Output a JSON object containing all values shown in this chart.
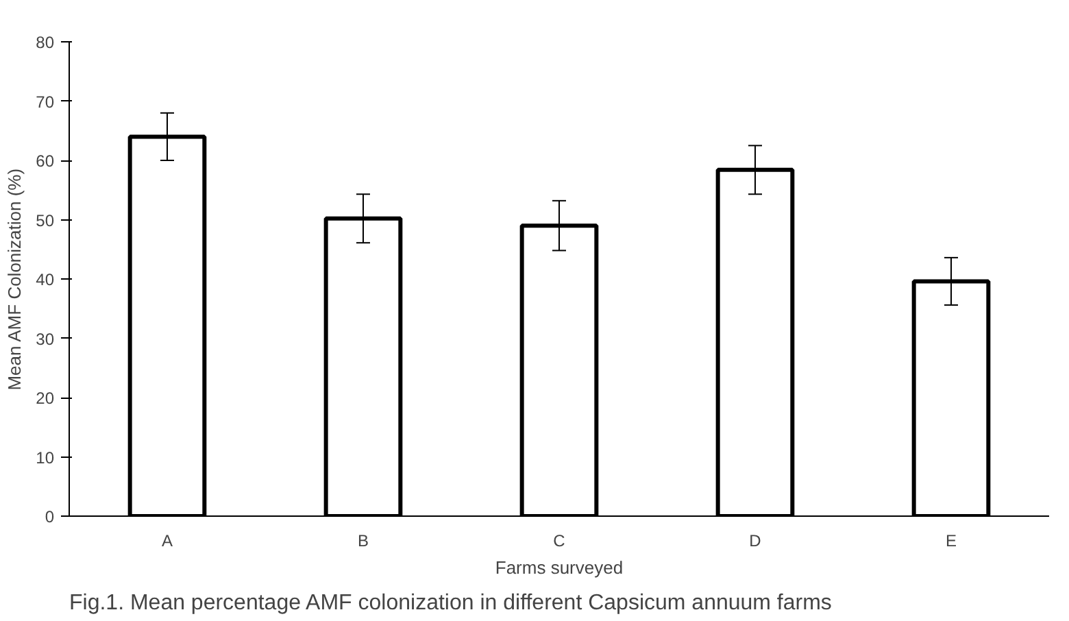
{
  "chart_data": {
    "type": "bar",
    "xlabel": "Farms surveyed",
    "ylabel": "Mean AMF Colonization (%)",
    "categories": [
      "A",
      "B",
      "C",
      "D",
      "E"
    ],
    "values": [
      64,
      50.2,
      49,
      58.4,
      39.6
    ],
    "errors": [
      4,
      4.1,
      4.2,
      4.1,
      4
    ],
    "color": "#ffffff",
    "ylim": [
      0,
      80
    ],
    "yticks": [
      0,
      10,
      20,
      30,
      40,
      50,
      60,
      70,
      80
    ],
    "grid": false,
    "annotations": [
      "Fig.1. Mean percentage AMF colonization in different Capsicum annuum farms"
    ]
  }
}
